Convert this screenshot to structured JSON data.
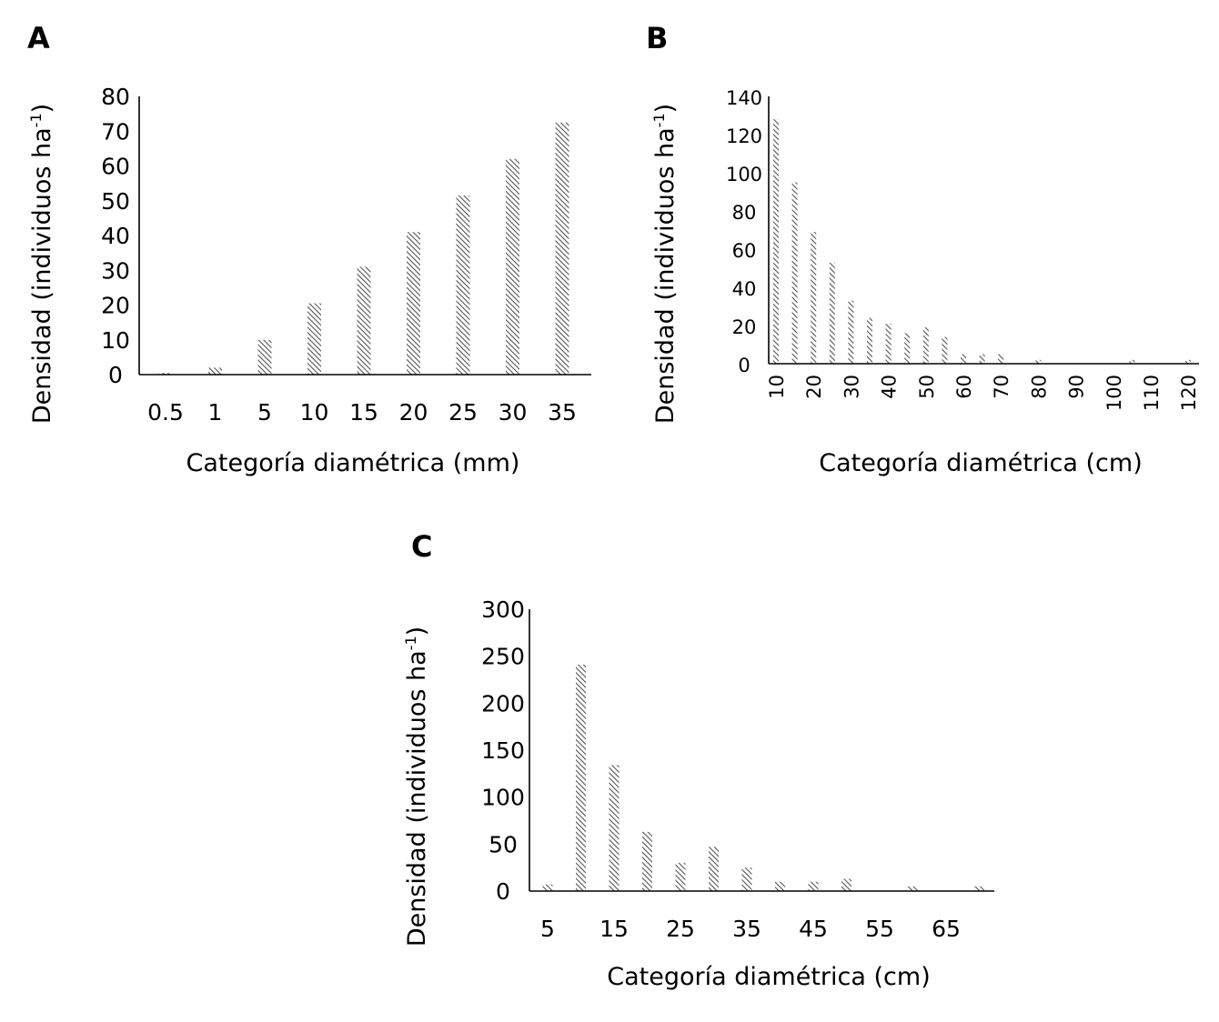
{
  "chart_data": [
    {
      "panel": "A",
      "type": "bar",
      "categories": [
        "0.5",
        "1",
        "5",
        "10",
        "15",
        "20",
        "25",
        "30",
        "35"
      ],
      "values": [
        0.5,
        2,
        10,
        20.5,
        31,
        41,
        51.5,
        62,
        72.5
      ],
      "ylabel_main": "Densidad (individuos ha",
      "ylabel_sup": "-1",
      "ylabel_end": ")",
      "xlabel": "Categoría diamétrica (mm)",
      "ylim": [
        0,
        80
      ],
      "yticks": [
        0,
        10,
        20,
        30,
        40,
        50,
        60,
        70,
        80
      ],
      "bar_pattern": "diagonal-hatch",
      "bar_color": "#555555",
      "grid": false
    },
    {
      "panel": "B",
      "type": "bar",
      "categories": [
        "10",
        "15",
        "20",
        "25",
        "30",
        "35",
        "40",
        "45",
        "50",
        "55",
        "60",
        "65",
        "70",
        "75",
        "80",
        "85",
        "90",
        "95",
        "100",
        "105",
        "110",
        "115",
        "120"
      ],
      "values": [
        128,
        95,
        69,
        53,
        33,
        24,
        21,
        16,
        19,
        14,
        5,
        5,
        5,
        0,
        2,
        0,
        0,
        0,
        0,
        2,
        0,
        0,
        2
      ],
      "xtick_labels": [
        "10",
        "20",
        "30",
        "40",
        "50",
        "60",
        "70",
        "80",
        "90",
        "100",
        "110",
        "120"
      ],
      "ylabel_main": "Densidad (individuos ha",
      "ylabel_sup": "-1",
      "ylabel_end": ")",
      "xlabel": "Categoría diamétrica (cm)",
      "ylim": [
        0,
        140
      ],
      "yticks": [
        0,
        20,
        40,
        60,
        80,
        100,
        120,
        140
      ],
      "bar_pattern": "diagonal-hatch",
      "bar_color": "#555555",
      "grid": false
    },
    {
      "panel": "C",
      "type": "bar",
      "categories": [
        "5",
        "10",
        "15",
        "20",
        "25",
        "30",
        "35",
        "40",
        "45",
        "50",
        "55",
        "60",
        "65",
        "70"
      ],
      "values": [
        7,
        241,
        134,
        63,
        30,
        47,
        25,
        10,
        10,
        13,
        0,
        5,
        0,
        5
      ],
      "xtick_labels": [
        "5",
        "15",
        "25",
        "35",
        "45",
        "55",
        "65"
      ],
      "ylabel_main": "Densidad (individuos ha",
      "ylabel_sup": "-1",
      "ylabel_end": ")",
      "xlabel": "Categoría diamétrica (cm)",
      "ylim": [
        0,
        300
      ],
      "yticks": [
        0,
        50,
        100,
        150,
        200,
        250,
        300
      ],
      "bar_pattern": "diagonal-hatch",
      "bar_color": "#555555",
      "grid": false
    }
  ]
}
